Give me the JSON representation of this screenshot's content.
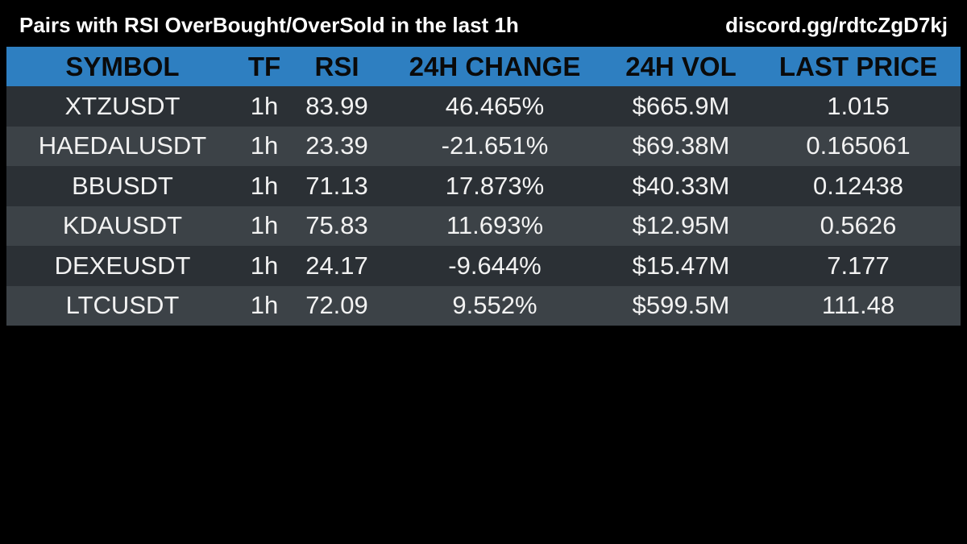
{
  "header": {
    "title": "Pairs with RSI OverBought/OverSold in the last 1h",
    "invite": "discord.gg/rdtcZgD7kj"
  },
  "table": {
    "columns": [
      "SYMBOL",
      "TF",
      "RSI",
      "24H CHANGE",
      "24H VOL",
      "LAST PRICE"
    ],
    "rows": [
      {
        "symbol": "XTZUSDT",
        "tf": "1h",
        "rsi": "83.99",
        "change": "46.465%",
        "vol": "$665.9M",
        "price": "1.015"
      },
      {
        "symbol": "HAEDALUSDT",
        "tf": "1h",
        "rsi": "23.39",
        "change": "-21.651%",
        "vol": "$69.38M",
        "price": "0.165061"
      },
      {
        "symbol": "BBUSDT",
        "tf": "1h",
        "rsi": "71.13",
        "change": "17.873%",
        "vol": "$40.33M",
        "price": "0.12438"
      },
      {
        "symbol": "KDAUSDT",
        "tf": "1h",
        "rsi": "75.83",
        "change": "11.693%",
        "vol": "$12.95M",
        "price": "0.5626"
      },
      {
        "symbol": "DEXEUSDT",
        "tf": "1h",
        "rsi": "24.17",
        "change": "-9.644%",
        "vol": "$15.47M",
        "price": "7.177"
      },
      {
        "symbol": "LTCUSDT",
        "tf": "1h",
        "rsi": "72.09",
        "change": "9.552%",
        "vol": "$599.5M",
        "price": "111.48"
      }
    ]
  },
  "colors": {
    "background": "#000000",
    "header_row": "#2e7fc1",
    "row_dark": "#2b3035",
    "row_light": "#3c4247"
  }
}
